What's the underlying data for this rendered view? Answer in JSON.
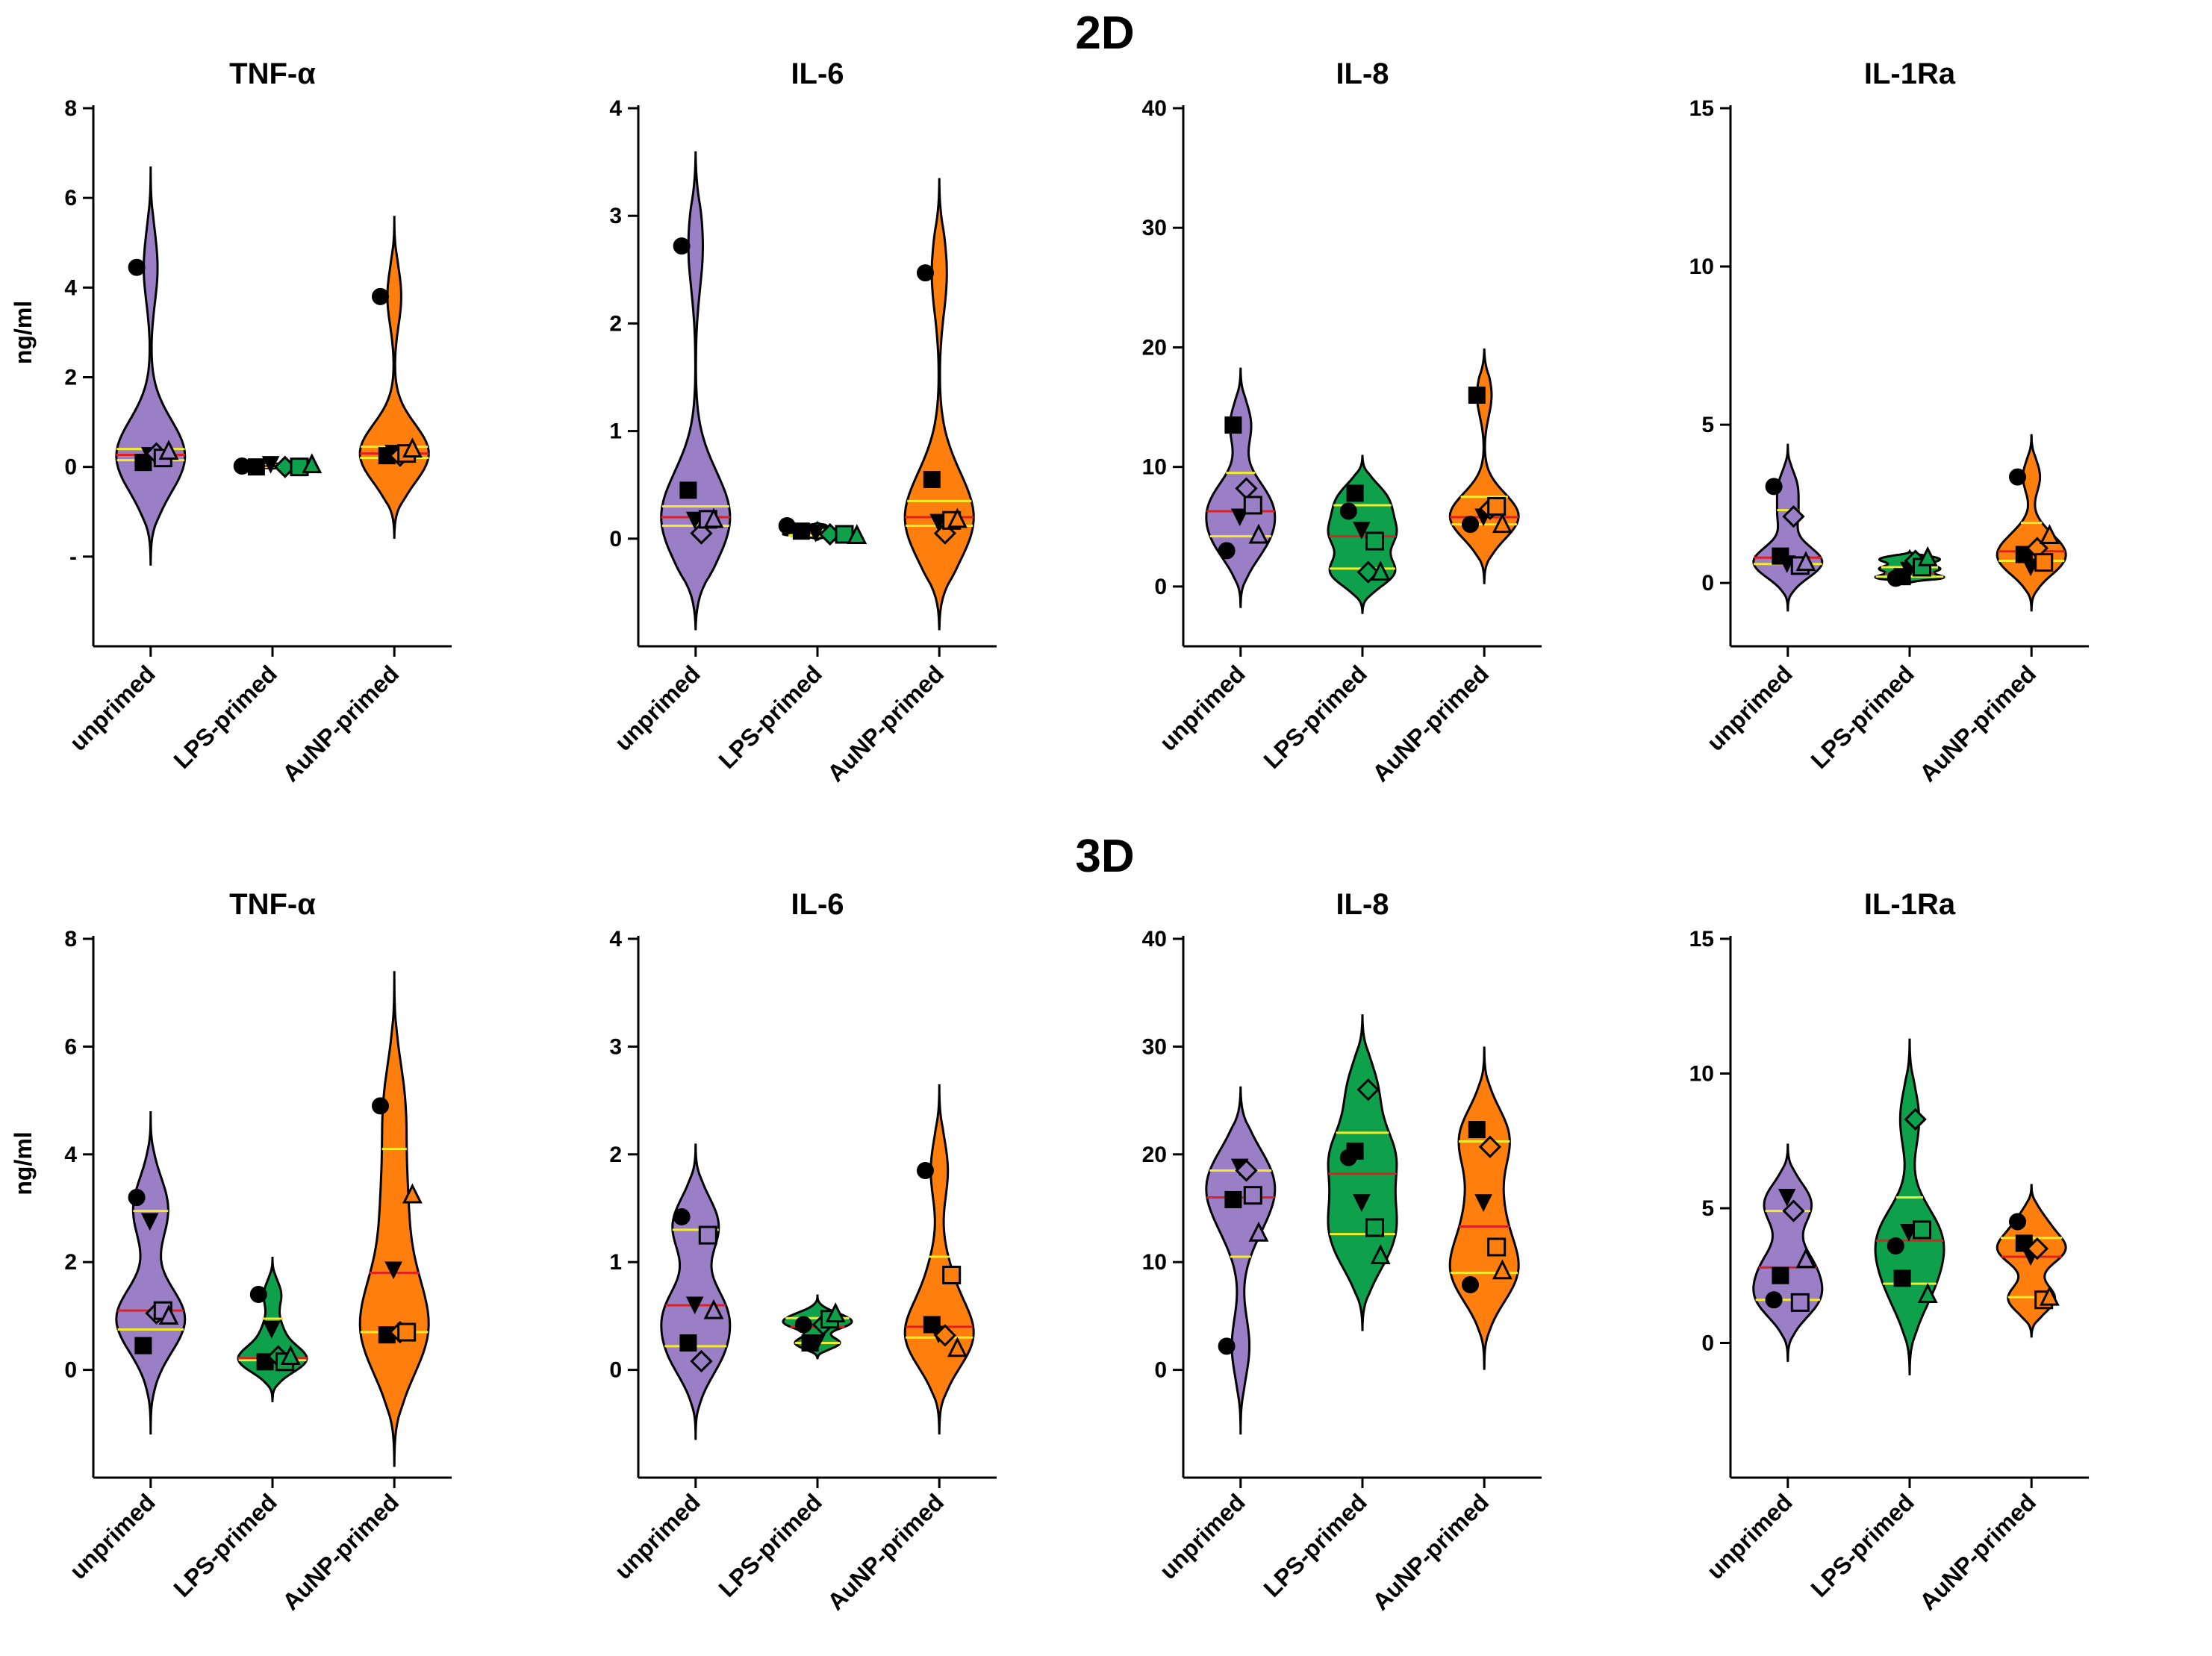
{
  "figure": {
    "section_titles": [
      "2D",
      "3D"
    ],
    "ylabel": "ng/ml",
    "colors": {
      "unprimed": "#9b7fc6",
      "LPS-primed": "#0ea04b",
      "AuNP-primed": "#ff7f0e",
      "median": "#e02020",
      "quartile": "#f2ec2c",
      "axis": "#000000"
    },
    "marker_order": [
      "circle-filled",
      "square-filled",
      "triangle-down-filled",
      "diamond-open",
      "square-open",
      "triangle-open"
    ],
    "icons": [
      "circle-filled-icon",
      "square-filled-icon",
      "triangle-down-filled-icon",
      "diamond-open-icon",
      "square-open-icon",
      "triangle-open-icon"
    ]
  },
  "chart_data": [
    {
      "type": "violin",
      "section": "2D",
      "title": "TNF-α",
      "categories": [
        "unprimed",
        "LPS-primed",
        "AuNP-primed"
      ],
      "ylim": [
        -4,
        8
      ],
      "yticks": [
        0,
        2,
        4,
        6,
        8
      ],
      "ytick_labels": [
        "0",
        "2",
        "4",
        "6",
        "8"
      ],
      "extra_tick": -2,
      "extra_tick_label": "-",
      "xlabel": "",
      "ylabel": "ng/ml",
      "series": [
        {
          "name": "unprimed",
          "values": [
            4.45,
            0.1,
            0.25,
            0.3,
            0.2,
            0.35
          ],
          "median": 0.27,
          "q1": 0.15,
          "q3": 0.4,
          "range": [
            -2.2,
            6.7
          ]
        },
        {
          "name": "LPS-primed",
          "values": [
            0.02,
            0.0,
            0.05,
            0.0,
            0.0,
            0.05
          ],
          "median": 0.02,
          "q1": 0.0,
          "q3": 0.04,
          "range": [
            -0.05,
            0.1
          ]
        },
        {
          "name": "AuNP-primed",
          "values": [
            3.8,
            0.25,
            0.3,
            0.25,
            0.3,
            0.4
          ],
          "median": 0.3,
          "q1": 0.2,
          "q3": 0.45,
          "range": [
            -1.6,
            5.6
          ]
        }
      ]
    },
    {
      "type": "violin",
      "section": "2D",
      "title": "IL-6",
      "categories": [
        "unprimed",
        "LPS-primed",
        "AuNP-primed"
      ],
      "ylim": [
        -1,
        4
      ],
      "yticks": [
        0,
        1,
        2,
        3,
        4
      ],
      "ytick_labels": [
        "0",
        "1",
        "2",
        "3",
        "4"
      ],
      "xlabel": "",
      "ylabel": "",
      "series": [
        {
          "name": "unprimed",
          "values": [
            2.72,
            0.45,
            0.17,
            0.05,
            0.18,
            0.18
          ],
          "median": 0.2,
          "q1": 0.12,
          "q3": 0.3,
          "range": [
            -0.85,
            3.6
          ]
        },
        {
          "name": "LPS-primed",
          "values": [
            0.12,
            0.07,
            0.05,
            0.04,
            0.04,
            0.03
          ],
          "median": 0.06,
          "q1": 0.03,
          "q3": 0.08,
          "range": [
            -0.02,
            0.15
          ]
        },
        {
          "name": "AuNP-primed",
          "values": [
            2.47,
            0.55,
            0.15,
            0.05,
            0.17,
            0.18
          ],
          "median": 0.2,
          "q1": 0.12,
          "q3": 0.35,
          "range": [
            -0.85,
            3.35
          ]
        }
      ]
    },
    {
      "type": "violin",
      "section": "2D",
      "title": "IL-8",
      "categories": [
        "unprimed",
        "LPS-primed",
        "AuNP-primed"
      ],
      "ylim": [
        -5,
        40
      ],
      "yticks": [
        0,
        10,
        20,
        30,
        40
      ],
      "ytick_labels": [
        "0",
        "10",
        "20",
        "30",
        "40"
      ],
      "xlabel": "",
      "ylabel": "",
      "series": [
        {
          "name": "unprimed",
          "values": [
            3.0,
            13.5,
            5.8,
            8.2,
            6.8,
            4.3
          ],
          "median": 6.3,
          "q1": 4.2,
          "q3": 9.5,
          "range": [
            -1.8,
            18.3
          ]
        },
        {
          "name": "LPS-primed",
          "values": [
            6.3,
            7.8,
            4.7,
            1.2,
            3.8,
            1.2
          ],
          "median": 4.2,
          "q1": 1.5,
          "q3": 6.8,
          "range": [
            -2.3,
            11.0
          ]
        },
        {
          "name": "AuNP-primed",
          "values": [
            5.2,
            16.0,
            5.8,
            6.5,
            6.7,
            5.2
          ],
          "median": 5.8,
          "q1": 5.2,
          "q3": 7.5,
          "range": [
            0.2,
            19.9
          ]
        }
      ]
    },
    {
      "type": "violin",
      "section": "2D",
      "title": "IL-1Ra",
      "categories": [
        "unprimed",
        "LPS-primed",
        "AuNP-primed"
      ],
      "ylim": [
        -2,
        15
      ],
      "yticks": [
        0,
        5,
        10,
        15
      ],
      "ytick_labels": [
        "0",
        "5",
        "10",
        "15"
      ],
      "xlabel": "",
      "ylabel": "",
      "series": [
        {
          "name": "unprimed",
          "values": [
            3.05,
            0.85,
            0.6,
            2.1,
            0.55,
            0.65
          ],
          "median": 0.8,
          "q1": 0.6,
          "q3": 2.3,
          "range": [
            -0.9,
            4.4
          ]
        },
        {
          "name": "LPS-primed",
          "values": [
            0.15,
            0.2,
            0.4,
            0.7,
            0.5,
            0.8
          ],
          "median": 0.3,
          "q1": 0.2,
          "q3": 0.5,
          "range": [
            0.0,
            1.0
          ]
        },
        {
          "name": "AuNP-primed",
          "values": [
            3.35,
            0.9,
            0.5,
            1.1,
            0.65,
            1.5
          ],
          "median": 1.0,
          "q1": 0.7,
          "q3": 1.9,
          "range": [
            -0.9,
            4.7
          ]
        }
      ]
    },
    {
      "type": "violin",
      "section": "3D",
      "title": "TNF-α",
      "categories": [
        "unprimed",
        "LPS-primed",
        "AuNP-primed"
      ],
      "ylim": [
        -2,
        8
      ],
      "yticks": [
        0,
        2,
        4,
        6,
        8
      ],
      "ytick_labels": [
        "0",
        "2",
        "4",
        "6",
        "8"
      ],
      "xlabel": "",
      "ylabel": "ng/ml",
      "series": [
        {
          "name": "unprimed",
          "values": [
            3.2,
            0.45,
            2.75,
            1.05,
            1.1,
            1.0
          ],
          "median": 1.1,
          "q1": 0.75,
          "q3": 2.95,
          "range": [
            -1.2,
            4.8
          ]
        },
        {
          "name": "LPS-primed",
          "values": [
            1.4,
            0.15,
            0.75,
            0.25,
            0.15,
            0.25
          ],
          "median": 0.22,
          "q1": 0.18,
          "q3": 0.95,
          "range": [
            -0.6,
            2.1
          ]
        },
        {
          "name": "AuNP-primed",
          "values": [
            4.9,
            0.65,
            1.85,
            0.7,
            0.7,
            3.25
          ],
          "median": 1.8,
          "q1": 0.7,
          "q3": 4.1,
          "range": [
            -1.8,
            7.4
          ]
        }
      ]
    },
    {
      "type": "violin",
      "section": "3D",
      "title": "IL-6",
      "categories": [
        "unprimed",
        "LPS-primed",
        "AuNP-primed"
      ],
      "ylim": [
        -1,
        4
      ],
      "yticks": [
        0,
        1,
        2,
        3,
        4
      ],
      "ytick_labels": [
        "0",
        "1",
        "2",
        "3",
        "4"
      ],
      "xlabel": "",
      "ylabel": "",
      "series": [
        {
          "name": "unprimed",
          "values": [
            1.42,
            0.25,
            0.6,
            0.08,
            1.25,
            0.55
          ],
          "median": 0.6,
          "q1": 0.22,
          "q3": 1.3,
          "range": [
            -0.65,
            2.1
          ]
        },
        {
          "name": "LPS-primed",
          "values": [
            0.42,
            0.25,
            0.25,
            0.42,
            0.47,
            0.52
          ],
          "median": 0.4,
          "q1": 0.25,
          "q3": 0.48,
          "range": [
            0.1,
            0.7
          ]
        },
        {
          "name": "AuNP-primed",
          "values": [
            1.85,
            0.42,
            0.33,
            0.32,
            0.88,
            0.2
          ],
          "median": 0.4,
          "q1": 0.3,
          "q3": 1.05,
          "range": [
            -0.6,
            2.65
          ]
        }
      ]
    },
    {
      "type": "violin",
      "section": "3D",
      "title": "IL-8",
      "categories": [
        "unprimed",
        "LPS-primed",
        "AuNP-primed"
      ],
      "ylim": [
        -10,
        40
      ],
      "yticks": [
        0,
        10,
        20,
        30,
        40
      ],
      "ytick_labels": [
        "0",
        "10",
        "20",
        "30",
        "40"
      ],
      "xlabel": "",
      "ylabel": "",
      "series": [
        {
          "name": "unprimed",
          "values": [
            2.2,
            15.8,
            18.8,
            18.5,
            16.2,
            12.7
          ],
          "median": 16.0,
          "q1": 10.5,
          "q3": 18.5,
          "range": [
            -6.0,
            26.3
          ]
        },
        {
          "name": "LPS-primed",
          "values": [
            19.7,
            20.3,
            15.5,
            26.0,
            13.2,
            10.6
          ],
          "median": 18.2,
          "q1": 12.6,
          "q3": 22.0,
          "range": [
            3.6,
            33.0
          ]
        },
        {
          "name": "AuNP-primed",
          "values": [
            7.9,
            22.3,
            15.5,
            20.7,
            11.4,
            9.2
          ],
          "median": 13.3,
          "q1": 9.0,
          "q3": 21.2,
          "range": [
            0.0,
            30.0
          ]
        }
      ]
    },
    {
      "type": "violin",
      "section": "3D",
      "title": "IL-1Ra",
      "categories": [
        "unprimed",
        "LPS-primed",
        "AuNP-primed"
      ],
      "ylim": [
        -5,
        15
      ],
      "yticks": [
        0,
        5,
        10,
        15
      ],
      "ytick_labels": [
        "0",
        "5",
        "10",
        "15"
      ],
      "xlabel": "",
      "ylabel": "",
      "series": [
        {
          "name": "unprimed",
          "values": [
            1.6,
            2.5,
            5.4,
            4.9,
            1.5,
            3.1
          ],
          "median": 2.8,
          "q1": 1.6,
          "q3": 4.9,
          "range": [
            -0.7,
            7.4
          ]
        },
        {
          "name": "LPS-primed",
          "values": [
            3.6,
            2.4,
            4.1,
            8.3,
            4.2,
            1.8
          ],
          "median": 3.8,
          "q1": 2.2,
          "q3": 5.4,
          "range": [
            -1.2,
            11.3
          ]
        },
        {
          "name": "AuNP-primed",
          "values": [
            4.5,
            3.7,
            3.2,
            3.5,
            1.6,
            1.7
          ],
          "median": 3.2,
          "q1": 1.7,
          "q3": 3.9,
          "range": [
            0.2,
            5.9
          ]
        }
      ]
    }
  ]
}
